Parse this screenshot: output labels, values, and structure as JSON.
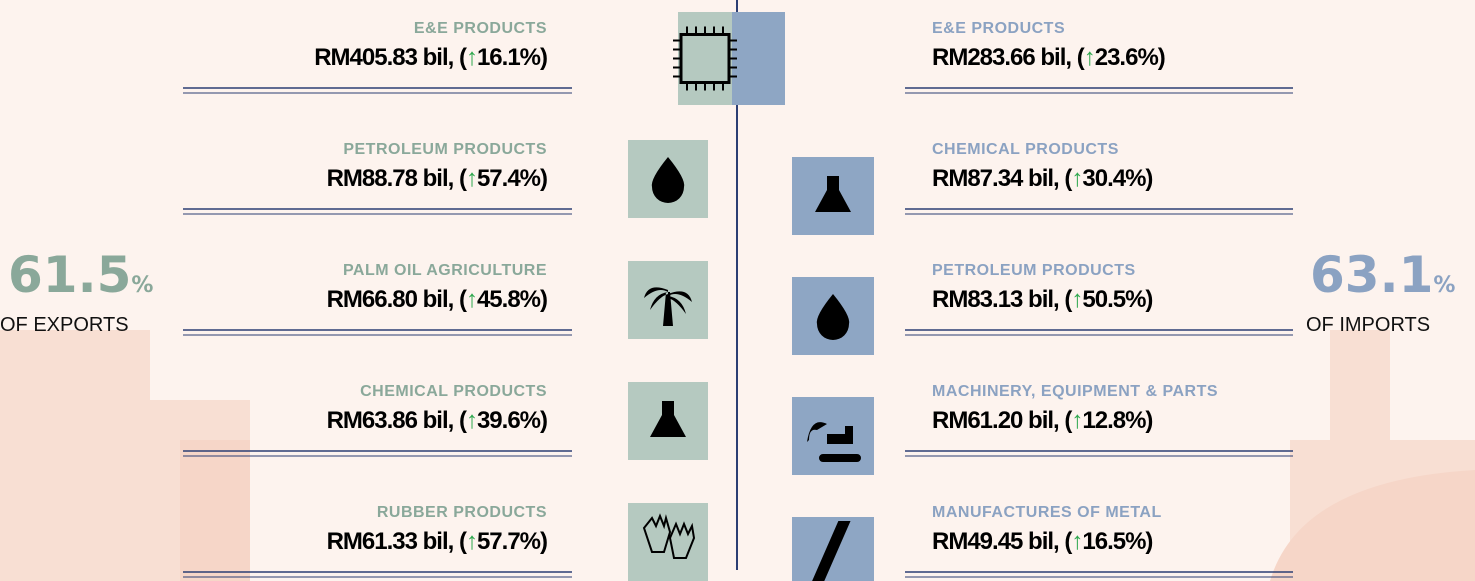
{
  "exports": {
    "share": {
      "value": "61.5",
      "unit": "%",
      "label": "OF EXPORTS"
    },
    "items": [
      {
        "category": "E&E PRODUCTS",
        "amount": "RM405.83 bil, (",
        "arrow": "↑",
        "change": "16.1%)"
      },
      {
        "category": "PETROLEUM PRODUCTS",
        "amount": "RM88.78 bil, (",
        "arrow": "↑",
        "change": "57.4%)"
      },
      {
        "category": "PALM OIL AGRICULTURE",
        "amount": "RM66.80 bil, (",
        "arrow": "↑",
        "change": "45.8%)"
      },
      {
        "category": "CHEMICAL PRODUCTS",
        "amount": "RM63.86 bil, (",
        "arrow": "↑",
        "change": "39.6%)"
      },
      {
        "category": "RUBBER PRODUCTS",
        "amount": "RM61.33 bil, (",
        "arrow": "↑",
        "change": "57.7%)"
      }
    ]
  },
  "imports": {
    "share": {
      "value": "63.1",
      "unit": "%",
      "label": "OF IMPORTS"
    },
    "items": [
      {
        "category": "E&E PRODUCTS",
        "amount": "RM283.66 bil, (",
        "arrow": "↑",
        "change": "23.6%)"
      },
      {
        "category": "CHEMICAL PRODUCTS",
        "amount": "RM87.34 bil, (",
        "arrow": "↑",
        "change": "30.4%)"
      },
      {
        "category": "PETROLEUM PRODUCTS",
        "amount": "RM83.13 bil, (",
        "arrow": "↑",
        "change": "50.5%)"
      },
      {
        "category": "MACHINERY, EQUIPMENT & PARTS",
        "amount": "RM61.20 bil, (",
        "arrow": "↑",
        "change": "12.8%)"
      },
      {
        "category": "MANUFACTURES OF METAL",
        "amount": "RM49.45 bil, (",
        "arrow": "↑",
        "change": "16.5%)"
      }
    ]
  }
}
